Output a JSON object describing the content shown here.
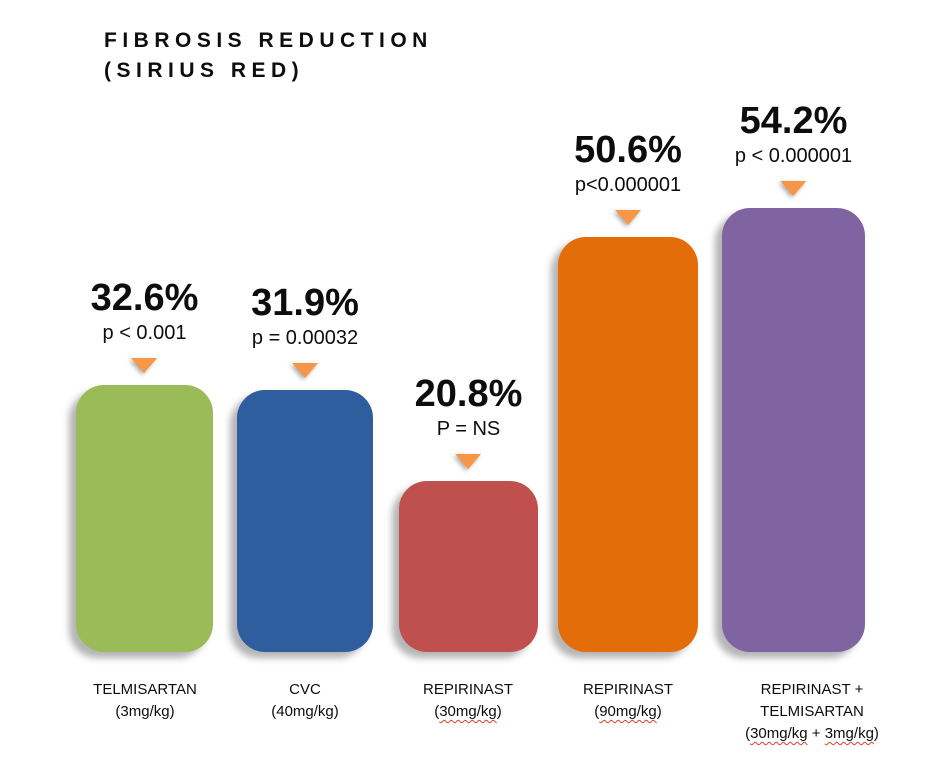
{
  "title": {
    "line1": "FIBROSIS REDUCTION",
    "line2": "(SIRIUS RED)"
  },
  "colors": {
    "background": "#FFFFFF",
    "text": "#0D0D0D",
    "marker": "#F79646",
    "spellcheck_underline": "#E03C31",
    "bar_green": "#9BBB59",
    "bar_blue": "#2E5E9D",
    "bar_red": "#C0504D",
    "bar_orange": "#E36D09",
    "bar_purple": "#8064A2"
  },
  "chart_data": {
    "type": "bar",
    "title": "FIBROSIS REDUCTION (SIRIUS RED)",
    "xlabel": "",
    "ylabel": "",
    "ylim": [
      0,
      60
    ],
    "grid": false,
    "legend": "none",
    "value_unit": "%",
    "marker_icon": "arrow-down-triangle",
    "marker_color": "#F79646",
    "categories": [
      "TELMISARTAN (3mg/kg)",
      "CVC (40mg/kg)",
      "REPIRINAST (30mg/kg)",
      "REPIRINAST (90mg/kg)",
      "REPIRINAST + TELMISARTAN (30mg/kg + 3mg/kg)"
    ],
    "values": [
      32.6,
      31.9,
      20.8,
      50.6,
      54.2
    ],
    "bars": [
      {
        "value": 32.6,
        "value_label": "32.6%",
        "p_label": "p < 0.001",
        "color": "#9BBB59",
        "label_lines": [
          [
            {
              "text": "TELMISARTAN",
              "misspelled": false
            }
          ],
          [
            {
              "text": "(3mg/kg)",
              "misspelled": false
            }
          ]
        ]
      },
      {
        "value": 31.9,
        "value_label": "31.9%",
        "p_label": "p = 0.00032",
        "color": "#2E5E9D",
        "label_lines": [
          [
            {
              "text": "CVC",
              "misspelled": false
            }
          ],
          [
            {
              "text": "(40mg/kg)",
              "misspelled": false
            }
          ]
        ]
      },
      {
        "value": 20.8,
        "value_label": "20.8%",
        "p_label": "P = NS",
        "color": "#C0504D",
        "label_lines": [
          [
            {
              "text": "REPIRINAST",
              "misspelled": false
            }
          ],
          [
            {
              "text": "(",
              "misspelled": false
            },
            {
              "text": "30mg/kg",
              "misspelled": true
            },
            {
              "text": ")",
              "misspelled": false
            }
          ]
        ]
      },
      {
        "value": 50.6,
        "value_label": "50.6%",
        "p_label": "p<0.000001",
        "color": "#E36D09",
        "label_lines": [
          [
            {
              "text": "REPIRINAST",
              "misspelled": false
            }
          ],
          [
            {
              "text": "(",
              "misspelled": false
            },
            {
              "text": "90mg/kg",
              "misspelled": true
            },
            {
              "text": ")",
              "misspelled": false
            }
          ]
        ]
      },
      {
        "value": 54.2,
        "value_label": "54.2%",
        "p_label": "p < 0.000001",
        "color": "#8064A2",
        "label_lines": [
          [
            {
              "text": "REPIRINAST +",
              "misspelled": false
            }
          ],
          [
            {
              "text": "TELMISARTAN",
              "misspelled": false
            }
          ],
          [
            {
              "text": "(",
              "misspelled": false
            },
            {
              "text": "30mg/kg",
              "misspelled": true
            },
            {
              "text": " + ",
              "misspelled": false
            },
            {
              "text": "3mg/kg",
              "misspelled": true
            },
            {
              "text": ")",
              "misspelled": false
            }
          ]
        ]
      }
    ]
  }
}
